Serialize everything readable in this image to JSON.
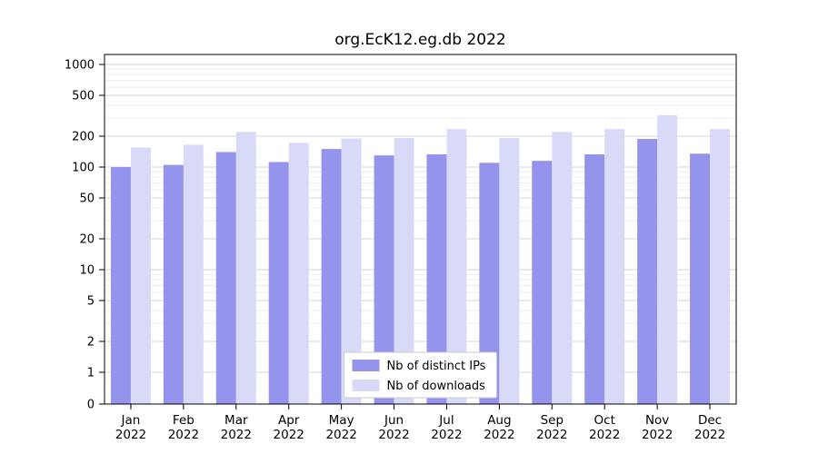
{
  "title": "org.EcK12.eg.db 2022",
  "chart_data": {
    "type": "bar",
    "scale": "log",
    "title": "org.EcK12.eg.db 2022",
    "categories": [
      "Jan",
      "Feb",
      "Mar",
      "Apr",
      "May",
      "Jun",
      "Jul",
      "Aug",
      "Sep",
      "Oct",
      "Nov",
      "Dec"
    ],
    "year_label": "2022",
    "series": [
      {
        "name": "Nb of distinct IPs",
        "color": "#9494ec",
        "values": [
          100,
          105,
          140,
          112,
          150,
          130,
          133,
          110,
          115,
          133,
          188,
          135
        ]
      },
      {
        "name": "Nb of downloads",
        "color": "#d9d9f8",
        "values": [
          155,
          165,
          220,
          172,
          190,
          192,
          235,
          192,
          220,
          235,
          320,
          235
        ]
      }
    ],
    "yticks": [
      0,
      1,
      2,
      5,
      10,
      20,
      50,
      100,
      200,
      500,
      1000
    ],
    "ylim": [
      0,
      1300
    ],
    "grid": true,
    "legend_position": "lower center",
    "legend_labels": [
      "Nb of distinct IPs",
      "Nb of downloads"
    ]
  },
  "colors": {
    "grid_minor": "#ececec",
    "grid_major": "#d6d6d6",
    "frame": "#000000",
    "background": "#ffffff",
    "legend_border": "#cccccc",
    "text": "#000000"
  }
}
